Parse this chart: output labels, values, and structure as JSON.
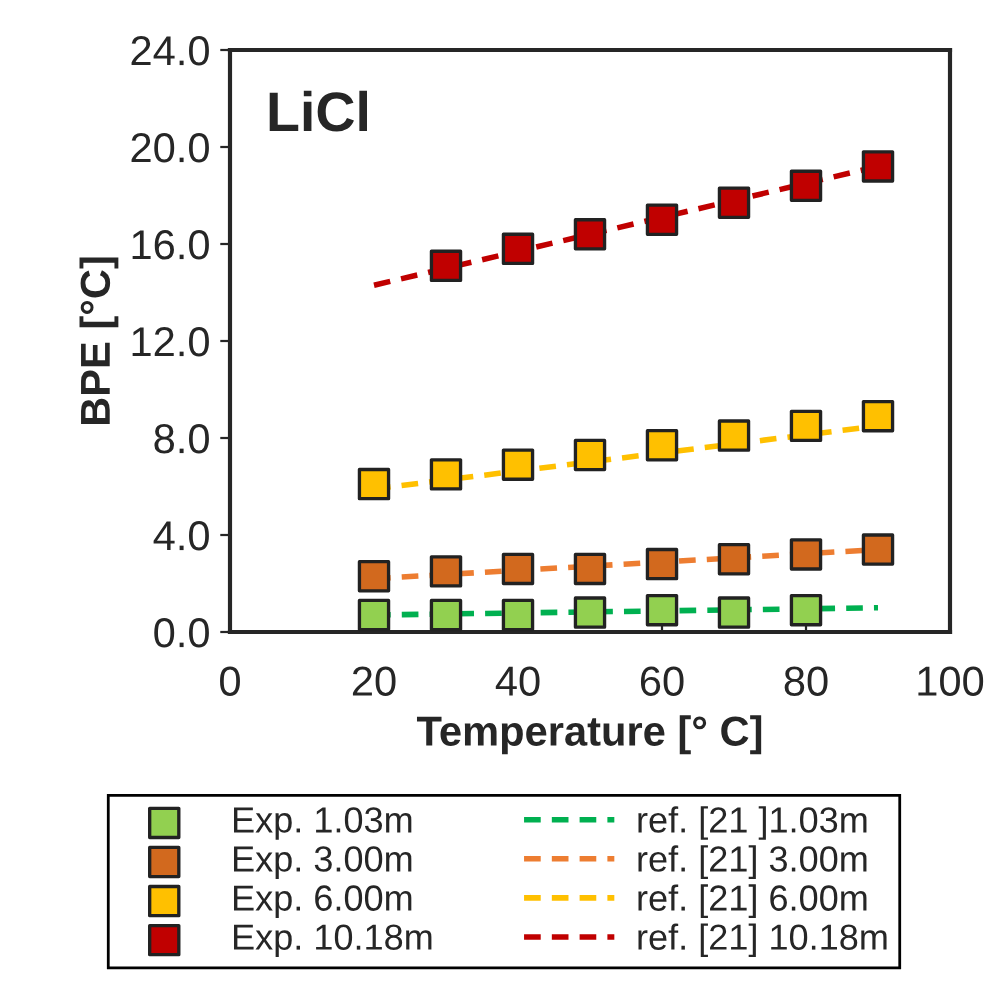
{
  "chart_data": {
    "type": "scatter",
    "xlabel": "Temperature [° C]",
    "ylabel": "BPE [°C]",
    "annotations": [
      "LiCl"
    ],
    "xlim": [
      0,
      100
    ],
    "xticks": [
      0,
      20,
      40,
      60,
      80,
      100
    ],
    "ylim": [
      0,
      24
    ],
    "yticks": [
      {
        "value": 0,
        "label": "0.0"
      },
      {
        "value": 4,
        "label": "4.0"
      },
      {
        "value": 8,
        "label": "8.0"
      },
      {
        "value": 12,
        "label": "12.0"
      },
      {
        "value": 16,
        "label": "16.0"
      },
      {
        "value": 20,
        "label": "20.0"
      },
      {
        "value": 24,
        "label": "24.0"
      }
    ],
    "grid": false,
    "legend": "bottom",
    "series": [
      {
        "name": "Exp. 1.03m",
        "marker": "square",
        "color": "#92d050",
        "x": [
          20,
          30,
          40,
          50,
          60,
          70,
          80
        ],
        "values": [
          0.7,
          0.7,
          0.7,
          0.8,
          0.9,
          0.8,
          0.9
        ]
      },
      {
        "name": "Exp. 3.00m",
        "marker": "square",
        "color": "#d2691e",
        "x": [
          20,
          30,
          40,
          50,
          60,
          70,
          80,
          90
        ],
        "values": [
          2.3,
          2.5,
          2.6,
          2.6,
          2.8,
          3.0,
          3.2,
          3.4
        ]
      },
      {
        "name": "Exp. 6.00m",
        "marker": "square",
        "color": "#ffc000",
        "x": [
          20,
          30,
          40,
          50,
          60,
          70,
          80,
          90
        ],
        "values": [
          6.1,
          6.5,
          6.9,
          7.3,
          7.7,
          8.1,
          8.5,
          8.9
        ]
      },
      {
        "name": "Exp. 10.18m",
        "marker": "square",
        "color": "#c00000",
        "x": [
          30,
          40,
          50,
          60,
          70,
          80,
          90
        ],
        "values": [
          15.1,
          15.8,
          16.4,
          17.0,
          17.7,
          18.4,
          19.2
        ]
      },
      {
        "name": "ref. [21 ]1.03m",
        "type": "line",
        "line_style": "dashed",
        "color": "#00b050",
        "x": [
          20,
          90
        ],
        "values": [
          0.7,
          1.0
        ]
      },
      {
        "name": "ref. [21] 3.00m",
        "type": "line",
        "line_style": "dashed",
        "color": "#ed7d31",
        "x": [
          20,
          90
        ],
        "values": [
          2.2,
          3.4
        ]
      },
      {
        "name": "ref. [21] 6.00m",
        "type": "line",
        "line_style": "dashed",
        "color": "#ffc000",
        "x": [
          20,
          90
        ],
        "values": [
          5.9,
          8.5
        ]
      },
      {
        "name": "ref. [21] 10.18m",
        "type": "line",
        "line_style": "dashed",
        "color": "#c00000",
        "x": [
          20,
          90
        ],
        "values": [
          14.3,
          19.2
        ]
      }
    ]
  }
}
